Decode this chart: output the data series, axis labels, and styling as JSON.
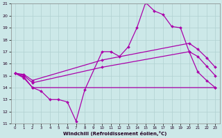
{
  "xlabel": "Windchill (Refroidissement éolien,°C)",
  "xlim": [
    -0.5,
    23.5
  ],
  "ylim": [
    11,
    21
  ],
  "xticks": [
    0,
    1,
    2,
    3,
    4,
    5,
    6,
    7,
    8,
    9,
    10,
    11,
    12,
    13,
    14,
    15,
    16,
    17,
    18,
    19,
    20,
    21,
    22,
    23
  ],
  "yticks": [
    11,
    12,
    13,
    14,
    15,
    16,
    17,
    18,
    19,
    20,
    21
  ],
  "bg_color": "#cce8e8",
  "grid_color": "#b0d0d0",
  "line_color": "#aa00aa",
  "line1_x": [
    0,
    1,
    2,
    3,
    4,
    5,
    6,
    7,
    8,
    10,
    11,
    12,
    13,
    14,
    15,
    16,
    17,
    18,
    19,
    20,
    21,
    22,
    23
  ],
  "line1_y": [
    15.2,
    14.8,
    14.0,
    13.7,
    13.0,
    13.0,
    12.8,
    11.2,
    13.8,
    17.0,
    17.0,
    16.6,
    17.4,
    19.0,
    21.1,
    20.4,
    20.1,
    19.1,
    19.0,
    17.0,
    15.3,
    14.6,
    14.0
  ],
  "line2_x": [
    0,
    1,
    2,
    23
  ],
  "line2_y": [
    15.2,
    14.9,
    14.0,
    14.0
  ],
  "line3_x": [
    0,
    1,
    2,
    10,
    20,
    21,
    22,
    23
  ],
  "line3_y": [
    15.2,
    15.0,
    14.4,
    15.7,
    17.0,
    16.6,
    15.8,
    15.0
  ],
  "line4_x": [
    0,
    1,
    2,
    10,
    20,
    21,
    22,
    23
  ],
  "line4_y": [
    15.2,
    15.1,
    14.6,
    16.3,
    17.7,
    17.2,
    16.5,
    15.7
  ],
  "marker": "D",
  "marker_size": 2.0,
  "linewidth": 0.9
}
